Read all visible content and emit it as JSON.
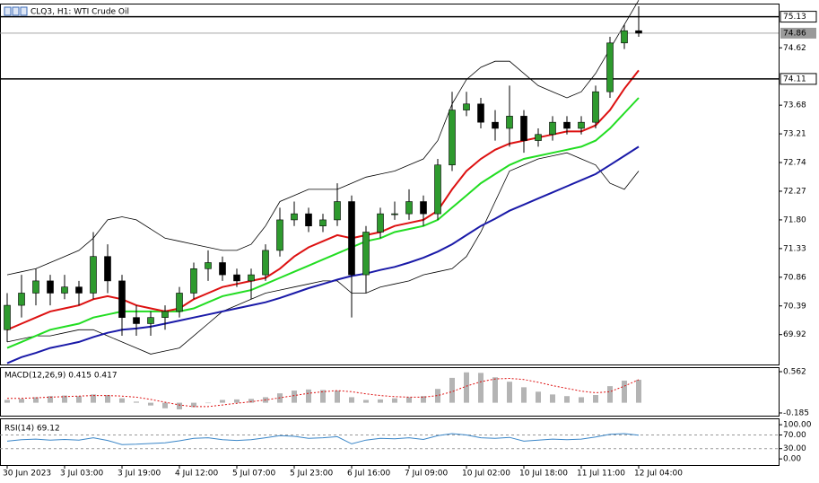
{
  "chart_data": [
    {
      "type": "candlestick",
      "title": "CLQ3, H1: WTI Crude Oil",
      "categories": [
        "30 Jun 2023",
        null,
        null,
        null,
        "3 Jul 03:00",
        null,
        null,
        null,
        "3 Jul 19:00",
        null,
        null,
        null,
        "4 Jul 12:00",
        null,
        null,
        null,
        "5 Jul 07:00",
        null,
        null,
        null,
        "5 Jul 23:00",
        null,
        null,
        null,
        "6 Jul 16:00",
        null,
        null,
        null,
        "7 Jul 09:00",
        null,
        null,
        null,
        "10 Jul 02:00",
        null,
        null,
        null,
        "10 Jul 18:00",
        null,
        null,
        null,
        "11 Jul 11:00",
        null,
        null,
        null,
        "12 Jul 04:00"
      ],
      "open": [
        70.0,
        70.4,
        70.6,
        70.8,
        70.6,
        70.7,
        70.6,
        71.2,
        70.8,
        70.2,
        70.1,
        70.2,
        70.3,
        70.6,
        71.0,
        71.1,
        70.9,
        70.8,
        70.9,
        71.3,
        71.8,
        71.9,
        71.7,
        71.8,
        72.1,
        70.9,
        71.6,
        71.9,
        71.9,
        72.1,
        71.9,
        72.7,
        73.6,
        73.7,
        73.4,
        73.3,
        73.5,
        73.1,
        73.2,
        73.4,
        73.3,
        73.4,
        73.9,
        74.7,
        74.9
      ],
      "high": [
        70.6,
        70.9,
        71.0,
        70.9,
        70.9,
        70.8,
        71.6,
        71.4,
        70.9,
        70.4,
        70.3,
        70.4,
        70.7,
        71.1,
        71.3,
        71.2,
        71.0,
        71.0,
        71.4,
        72.0,
        72.1,
        72.0,
        71.9,
        72.4,
        72.2,
        71.7,
        72.0,
        72.1,
        72.3,
        72.2,
        72.8,
        73.9,
        73.9,
        73.8,
        73.6,
        74.0,
        73.6,
        73.3,
        73.5,
        73.5,
        73.5,
        74.0,
        74.8,
        75.0,
        75.3
      ],
      "low": [
        69.8,
        70.2,
        70.4,
        70.4,
        70.5,
        70.4,
        70.5,
        70.6,
        69.9,
        69.9,
        69.9,
        70.0,
        70.2,
        70.5,
        70.8,
        70.8,
        70.7,
        70.5,
        70.8,
        71.2,
        71.7,
        71.6,
        71.6,
        71.7,
        70.2,
        70.6,
        71.5,
        71.8,
        71.8,
        71.7,
        71.8,
        72.6,
        73.5,
        73.3,
        73.1,
        73.0,
        72.9,
        73.0,
        73.1,
        73.2,
        73.2,
        73.3,
        73.8,
        74.6,
        74.8
      ],
      "close": [
        70.4,
        70.6,
        70.8,
        70.6,
        70.7,
        70.6,
        71.2,
        70.8,
        70.2,
        70.1,
        70.2,
        70.3,
        70.6,
        71.0,
        71.1,
        70.9,
        70.8,
        70.9,
        71.3,
        71.8,
        71.9,
        71.7,
        71.8,
        72.1,
        70.9,
        71.6,
        71.9,
        71.9,
        72.1,
        71.9,
        72.7,
        73.6,
        73.7,
        73.4,
        73.3,
        73.5,
        73.1,
        73.2,
        73.4,
        73.3,
        73.4,
        73.9,
        74.7,
        74.9,
        74.86
      ],
      "bull_color": "#2e9a2e",
      "bear_color": "#000000",
      "series": [
        {
          "color": "#000000",
          "values": [
            70.9,
            70.95,
            71.0,
            71.1,
            71.2,
            71.3,
            71.5,
            71.8,
            71.85,
            71.8,
            71.65,
            71.5,
            71.45,
            71.4,
            71.35,
            71.3,
            71.3,
            71.4,
            71.7,
            72.1,
            72.2,
            72.3,
            72.3,
            72.3,
            72.4,
            72.5,
            72.55,
            72.6,
            72.7,
            72.8,
            73.1,
            73.7,
            74.1,
            74.3,
            74.4,
            74.4,
            74.2,
            74.0,
            73.9,
            73.8,
            73.9,
            74.2,
            74.6,
            75.0,
            75.4
          ]
        },
        {
          "color": "#000000",
          "values": [
            69.8,
            69.85,
            69.9,
            69.9,
            69.95,
            70.0,
            70.0,
            69.9,
            69.8,
            69.7,
            69.6,
            69.65,
            69.7,
            69.9,
            70.1,
            70.3,
            70.4,
            70.5,
            70.6,
            70.65,
            70.7,
            70.75,
            70.8,
            70.8,
            70.6,
            70.6,
            70.7,
            70.75,
            70.8,
            70.9,
            70.95,
            71.0,
            71.2,
            71.6,
            72.1,
            72.6,
            72.7,
            72.8,
            72.85,
            72.9,
            72.8,
            72.7,
            72.4,
            72.3,
            72.6
          ]
        },
        {
          "color": "#1a1aa8",
          "values": [
            69.45,
            69.55,
            69.62,
            69.7,
            69.75,
            69.8,
            69.88,
            69.95,
            70.0,
            70.02,
            70.05,
            70.1,
            70.15,
            70.2,
            70.25,
            70.3,
            70.35,
            70.4,
            70.45,
            70.52,
            70.6,
            70.68,
            70.75,
            70.82,
            70.88,
            70.92,
            70.98,
            71.03,
            71.1,
            71.18,
            71.28,
            71.4,
            71.55,
            71.7,
            71.82,
            71.95,
            72.05,
            72.15,
            72.25,
            72.35,
            72.45,
            72.55,
            72.7,
            72.85,
            73.0
          ]
        },
        {
          "color": "#22dd22",
          "values": [
            69.7,
            69.8,
            69.9,
            70.0,
            70.05,
            70.1,
            70.2,
            70.25,
            70.3,
            70.3,
            70.3,
            70.3,
            70.3,
            70.35,
            70.45,
            70.55,
            70.6,
            70.65,
            70.75,
            70.85,
            70.95,
            71.05,
            71.15,
            71.25,
            71.35,
            71.45,
            71.5,
            71.6,
            71.65,
            71.7,
            71.8,
            72.0,
            72.2,
            72.4,
            72.55,
            72.7,
            72.8,
            72.85,
            72.9,
            72.95,
            73.0,
            73.1,
            73.3,
            73.55,
            73.8
          ]
        },
        {
          "color": "#dd1111",
          "values": [
            70.0,
            70.1,
            70.2,
            70.3,
            70.35,
            70.4,
            70.5,
            70.55,
            70.5,
            70.4,
            70.35,
            70.3,
            70.35,
            70.5,
            70.6,
            70.7,
            70.75,
            70.8,
            70.85,
            71.0,
            71.2,
            71.35,
            71.45,
            71.55,
            71.5,
            71.55,
            71.6,
            71.7,
            71.75,
            71.8,
            71.95,
            72.3,
            72.6,
            72.8,
            72.95,
            73.05,
            73.1,
            73.15,
            73.2,
            73.25,
            73.25,
            73.35,
            73.6,
            73.95,
            74.25
          ]
        }
      ],
      "ylim": [
        69.43,
        75.33
      ],
      "yticks": [
        69.92,
        70.39,
        70.86,
        71.33,
        {
          "value": 71.8,
          "label": "71.80"
        },
        72.27,
        72.74,
        73.21,
        73.68,
        74.62
      ],
      "levels": [
        75.13,
        74.11
      ],
      "last_price": 74.86
    },
    {
      "type": "macd",
      "label": "MACD(12,26,9) 0.415 0.417",
      "histogram": [
        0.05,
        0.07,
        0.1,
        0.12,
        0.13,
        0.12,
        0.15,
        0.14,
        0.08,
        0.02,
        -0.05,
        -0.1,
        -0.12,
        -0.08,
        0.0,
        0.05,
        0.06,
        0.07,
        0.1,
        0.17,
        0.22,
        0.24,
        0.23,
        0.22,
        0.1,
        0.05,
        0.06,
        0.08,
        0.1,
        0.12,
        0.25,
        0.45,
        0.55,
        0.54,
        0.46,
        0.38,
        0.28,
        0.2,
        0.15,
        0.12,
        0.1,
        0.14,
        0.3,
        0.4,
        0.415
      ],
      "signal": [
        0.08,
        0.08,
        0.09,
        0.1,
        0.11,
        0.12,
        0.13,
        0.13,
        0.12,
        0.1,
        0.06,
        0.01,
        -0.04,
        -0.07,
        -0.07,
        -0.04,
        -0.01,
        0.02,
        0.05,
        0.09,
        0.13,
        0.17,
        0.2,
        0.22,
        0.2,
        0.16,
        0.13,
        0.11,
        0.1,
        0.1,
        0.13,
        0.2,
        0.3,
        0.38,
        0.43,
        0.44,
        0.42,
        0.37,
        0.31,
        0.26,
        0.21,
        0.18,
        0.2,
        0.3,
        0.417
      ],
      "histogram_color": "#b4b4b4",
      "signal_color": "#dd1111",
      "ylim": [
        -0.234,
        0.627
      ],
      "yticks": [
        0.562,
        -0.185
      ]
    },
    {
      "type": "rsi",
      "label": "RSI(14) 69.12",
      "values": [
        52,
        56,
        58,
        55,
        57,
        55,
        62,
        54,
        42,
        43,
        45,
        47,
        53,
        60,
        62,
        56,
        54,
        56,
        62,
        68,
        66,
        60,
        62,
        65,
        44,
        55,
        60,
        59,
        62,
        57,
        68,
        74,
        70,
        62,
        60,
        63,
        52,
        55,
        58,
        56,
        58,
        64,
        72,
        74,
        69.12
      ],
      "color": "#3a86c8",
      "ylim": [
        -18,
        116
      ],
      "yticks": [
        {
          "value": 100,
          "label": "100.00"
        },
        {
          "value": 70,
          "label": "70.00"
        },
        {
          "value": 30,
          "label": "30.00"
        },
        {
          "value": 0,
          "label": "0.00"
        }
      ],
      "levels": [
        70,
        30
      ]
    }
  ]
}
